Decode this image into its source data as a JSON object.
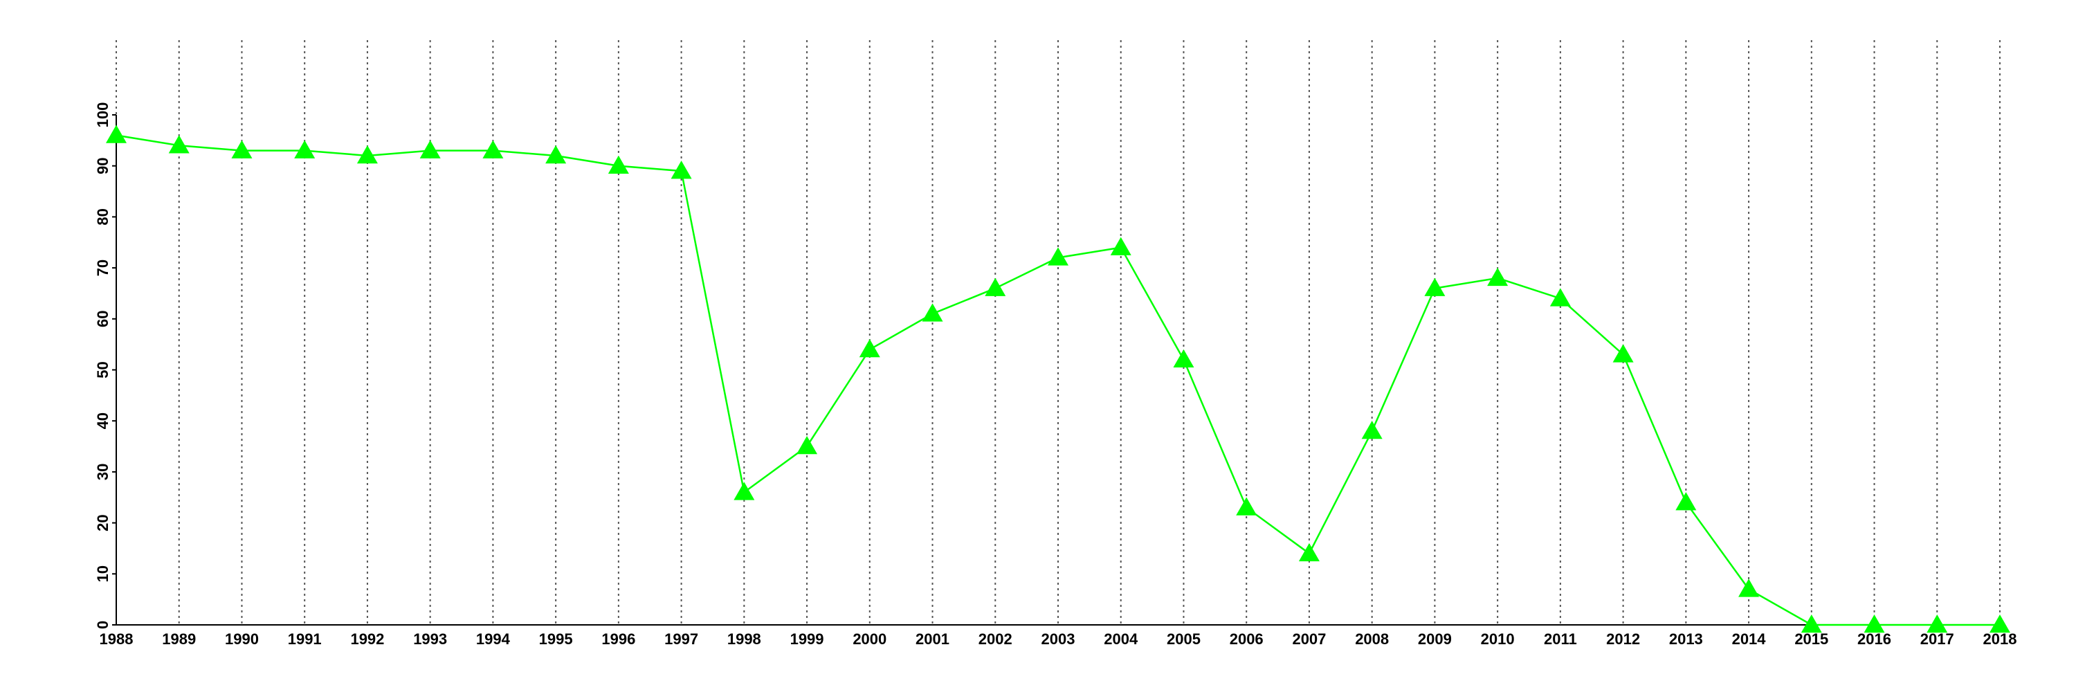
{
  "chart_data": {
    "type": "line",
    "x": [
      1988,
      1989,
      1990,
      1991,
      1992,
      1993,
      1994,
      1995,
      1996,
      1997,
      1998,
      1999,
      2000,
      2001,
      2002,
      2003,
      2004,
      2005,
      2006,
      2007,
      2008,
      2009,
      2010,
      2011,
      2012,
      2013,
      2014,
      2015,
      2016,
      2017,
      2018
    ],
    "series": [
      {
        "color": "#00ff00",
        "values": [
          96,
          94,
          93,
          93,
          92,
          93,
          93,
          92,
          90,
          89,
          26,
          35,
          54,
          61,
          66,
          72,
          74,
          52,
          23,
          14,
          38,
          66,
          68,
          64,
          53,
          24,
          7,
          0,
          0,
          0,
          0
        ]
      }
    ],
    "xlim": [
      1988,
      2018
    ],
    "xticks": [
      1988,
      1989,
      1990,
      1991,
      1992,
      1993,
      1994,
      1995,
      1996,
      1997,
      1998,
      1999,
      2000,
      2001,
      2002,
      2003,
      2004,
      2005,
      2006,
      2007,
      2008,
      2009,
      2010,
      2011,
      2012,
      2013,
      2014,
      2015,
      2016,
      2017,
      2018
    ],
    "ylim": [
      0,
      100
    ],
    "yticks": [
      0,
      10,
      20,
      30,
      40,
      50,
      60,
      70,
      80,
      90,
      100
    ],
    "grid": "x"
  }
}
